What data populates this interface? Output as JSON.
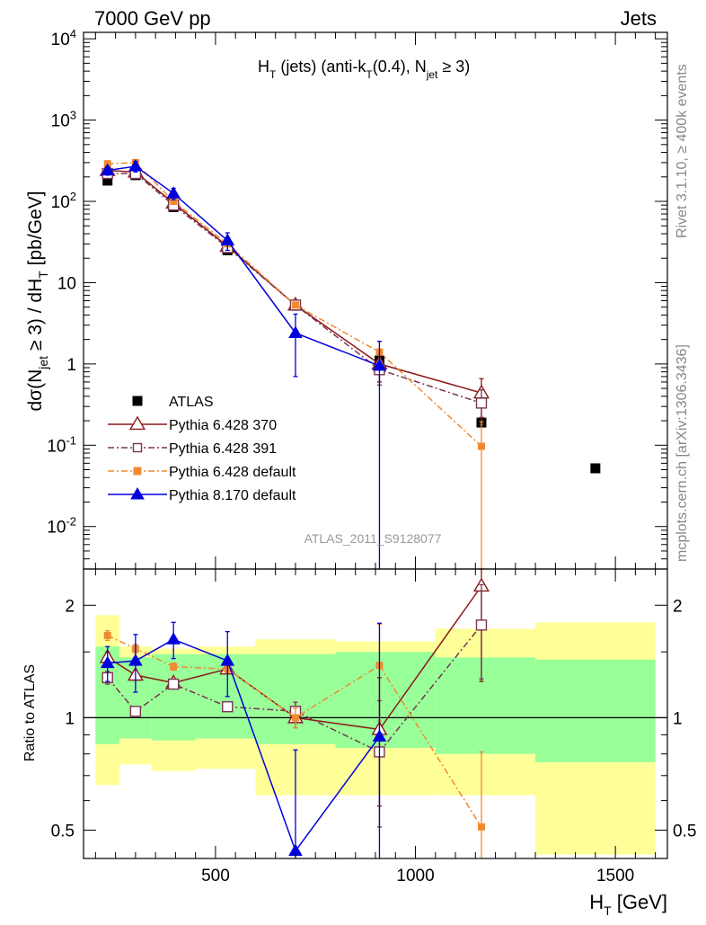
{
  "header": {
    "left_text": "7000 GeV pp",
    "right_text": "Jets"
  },
  "side_text": {
    "rivet": "Rivet 3.1.10, ≥ 400k events",
    "mcplots": "mcplots.cern.ch [arXiv:1306.3436]"
  },
  "analysis_label": "ATLAS_2011_S9128077",
  "chart_data": [
    {
      "type": "scatter",
      "panel": "main",
      "title": "H_T (jets) (anti-k_T(0.4), N_jet ≥ 3)",
      "ylabel": "dσ(N_jet ≥ 3) / dH_T [pb/GeV]",
      "yscale": "log",
      "ylim": [
        0.003,
        12000
      ],
      "xlim": [
        170,
        1630
      ],
      "y_tick_labels": [
        "10^-2",
        "10^-1",
        "1",
        "10",
        "10^2",
        "10^3",
        "10^4"
      ],
      "legend_position": "middle-left",
      "series": [
        {
          "name": "ATLAS",
          "color": "#000000",
          "marker": "filled-square",
          "line": "none",
          "x": [
            230,
            300,
            395,
            530,
            700,
            910,
            1165,
            1450
          ],
          "y": [
            180,
            210,
            85,
            25,
            5.2,
            1.1,
            0.19,
            0.052
          ]
        },
        {
          "name": "Pythia 6.428 370",
          "color": "#8b1a1a",
          "marker": "open-triangle",
          "line": "solid",
          "x": [
            230,
            300,
            395,
            530,
            700,
            910,
            1165
          ],
          "y": [
            240,
            230,
            95,
            28,
            5.3,
            1.0,
            0.44
          ],
          "err": [
            0,
            0,
            0,
            0,
            0,
            0.4,
            0.22
          ]
        },
        {
          "name": "Pythia 6.428 391",
          "color": "#7a3550",
          "marker": "open-square",
          "line": "dashdot",
          "x": [
            230,
            300,
            395,
            530,
            700,
            910,
            1165
          ],
          "y": [
            220,
            220,
            90,
            27,
            5.3,
            0.85,
            0.33
          ],
          "err": [
            0,
            0,
            0,
            0,
            0,
            0.3,
            0.15
          ]
        },
        {
          "name": "Pythia 6.428 default",
          "color": "#f08a30",
          "marker": "filled-square",
          "line": "dashdot",
          "x": [
            230,
            300,
            395,
            530,
            700,
            910,
            1165
          ],
          "y": [
            290,
            300,
            100,
            30,
            5.3,
            1.4,
            0.097
          ],
          "err": [
            0,
            0,
            0,
            0,
            0,
            0.5,
            0.097
          ]
        },
        {
          "name": "Pythia 8.170 default",
          "color": "#0000dd",
          "marker": "filled-triangle",
          "line": "solid",
          "x": [
            230,
            300,
            395,
            530,
            700,
            910
          ],
          "y": [
            240,
            270,
            125,
            33,
            2.4,
            0.95
          ],
          "err": [
            30,
            40,
            20,
            8,
            1.7,
            0.95
          ]
        }
      ]
    },
    {
      "type": "scatter",
      "panel": "ratio",
      "ylabel": "Ratio to ATLAS",
      "xlabel": "H_T [GeV]",
      "yscale": "log",
      "ylim": [
        0.42,
        2.5
      ],
      "xlim": [
        170,
        1630
      ],
      "y_tick_labels": [
        "0.5",
        "1",
        "2"
      ],
      "x_tick_labels": [
        "500",
        "1000",
        "1500"
      ],
      "reference_line": 1,
      "bands": {
        "bins": [
          [
            200,
            260
          ],
          [
            260,
            340
          ],
          [
            340,
            450
          ],
          [
            450,
            600
          ],
          [
            600,
            800
          ],
          [
            800,
            1050
          ],
          [
            1050,
            1300
          ],
          [
            1300,
            1600
          ]
        ],
        "inner": [
          [
            0.85,
            1.55
          ],
          [
            0.88,
            1.45
          ],
          [
            0.87,
            1.48
          ],
          [
            0.88,
            1.48
          ],
          [
            0.85,
            1.48
          ],
          [
            0.83,
            1.5
          ],
          [
            0.8,
            1.45
          ],
          [
            0.76,
            1.43
          ]
        ],
        "outer": [
          [
            0.66,
            1.88
          ],
          [
            0.75,
            1.55
          ],
          [
            0.72,
            1.53
          ],
          [
            0.73,
            1.55
          ],
          [
            0.62,
            1.62
          ],
          [
            0.62,
            1.6
          ],
          [
            0.62,
            1.73
          ],
          [
            0.43,
            1.8
          ]
        ],
        "inner_color": "#99ff99",
        "outer_color": "#ffff99"
      },
      "series": [
        {
          "name": "Pythia 6.428 370",
          "color": "#8b1a1a",
          "marker": "open-triangle",
          "line": "solid",
          "x": [
            230,
            300,
            395,
            530,
            700,
            910,
            1165
          ],
          "y": [
            1.45,
            1.3,
            1.24,
            1.35,
            1.0,
            0.93,
            2.25
          ],
          "err": [
            0.05,
            0.04,
            0.03,
            0.03,
            0.06,
            0.35,
            1.0
          ]
        },
        {
          "name": "Pythia 6.428 391",
          "color": "#7a3550",
          "marker": "open-square",
          "line": "dashdot",
          "x": [
            230,
            300,
            395,
            530,
            700,
            910,
            1165
          ],
          "y": [
            1.28,
            1.04,
            1.23,
            1.07,
            1.04,
            0.81,
            1.77
          ],
          "err": [
            0.05,
            0.03,
            0.03,
            0.03,
            0.06,
            0.3,
            0.5
          ]
        },
        {
          "name": "Pythia 6.428 default",
          "color": "#f08a30",
          "marker": "filled-square",
          "line": "dashdot",
          "x": [
            230,
            300,
            395,
            530,
            700,
            910,
            1165
          ],
          "y": [
            1.66,
            1.53,
            1.37,
            1.35,
            1.0,
            1.38,
            0.51
          ],
          "err": [
            0.05,
            0.04,
            0.03,
            0.03,
            0.06,
            0.4,
            0.3
          ]
        },
        {
          "name": "Pythia 8.170 default",
          "color": "#0000dd",
          "marker": "filled-triangle",
          "line": "solid",
          "x": [
            230,
            300,
            395,
            530,
            700,
            910
          ],
          "y": [
            1.4,
            1.42,
            1.62,
            1.42,
            0.44,
            0.89
          ],
          "err": [
            0.15,
            0.25,
            0.18,
            0.28,
            0.38,
            0.9
          ]
        }
      ]
    }
  ]
}
